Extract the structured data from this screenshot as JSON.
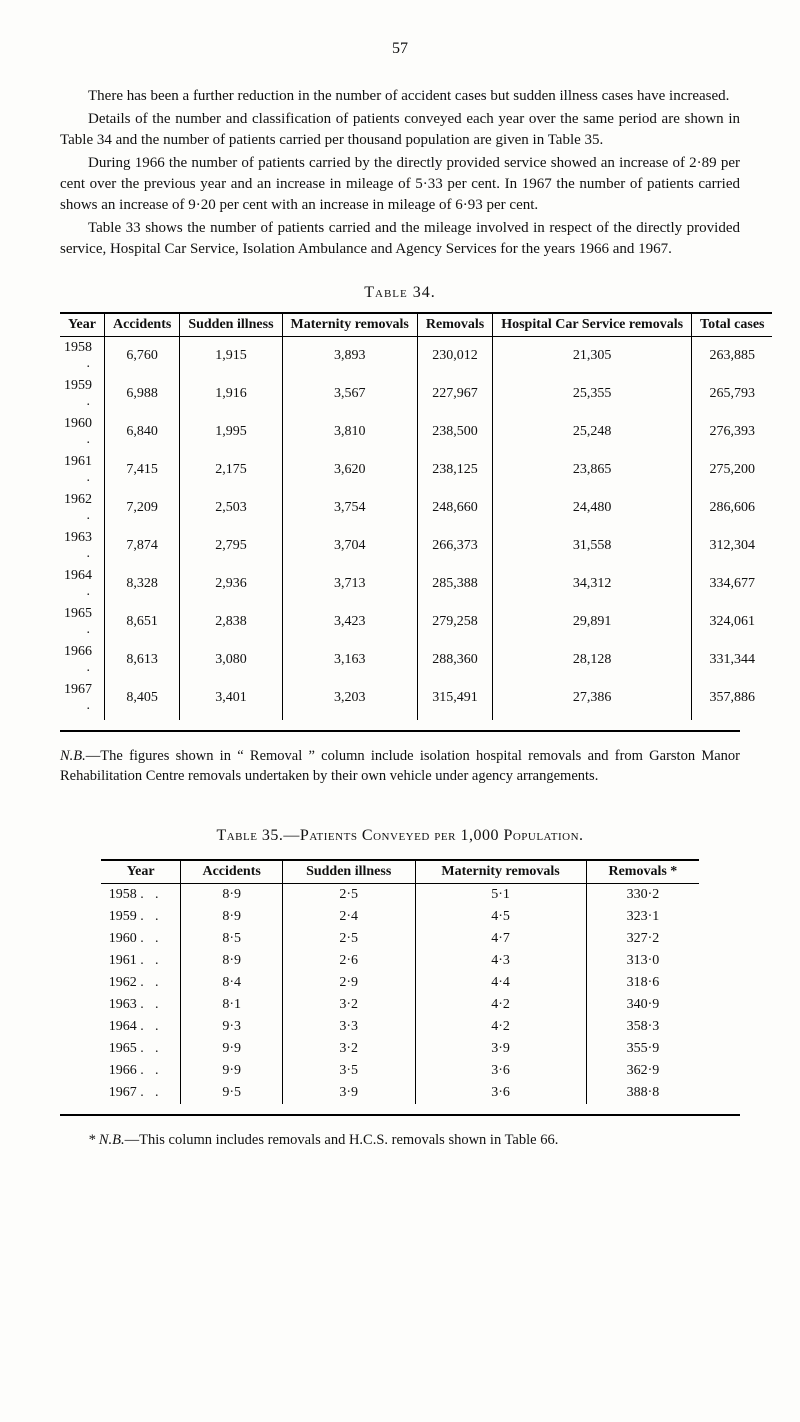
{
  "page_number": "57",
  "paragraphs": {
    "p1": "There has been a further reduction in the number of accident cases but sudden illness cases have increased.",
    "p2": "Details of the number and classification of patients conveyed each year over the same period are shown in Table 34 and the number of patients carried per thousand population are given in Table 35.",
    "p3": "During 1966 the number of patients carried by the directly provided service showed an increase of 2·89 per cent over the previous year and an increase in mileage of 5·33 per cent. In 1967 the number of patients carried shows an increase of 9·20 per cent with an increase in mileage of 6·93 per cent.",
    "p4": "Table 33 shows the number of patients carried and the mileage involved in respect of the directly provided service, Hospital Car Service, Isolation Ambulance and Agency Services for the years 1966 and 1967."
  },
  "table34": {
    "caption": "Table 34.",
    "columns": [
      "Year",
      "Accidents",
      "Sudden illness",
      "Maternity removals",
      "Removals",
      "Hospital Car Service removals",
      "Total cases"
    ],
    "rows": [
      [
        "1958",
        "6,760",
        "1,915",
        "3,893",
        "230,012",
        "21,305",
        "263,885"
      ],
      [
        "1959",
        "6,988",
        "1,916",
        "3,567",
        "227,967",
        "25,355",
        "265,793"
      ],
      [
        "1960",
        "6,840",
        "1,995",
        "3,810",
        "238,500",
        "25,248",
        "276,393"
      ],
      [
        "1961",
        "7,415",
        "2,175",
        "3,620",
        "238,125",
        "23,865",
        "275,200"
      ],
      [
        "1962",
        "7,209",
        "2,503",
        "3,754",
        "248,660",
        "24,480",
        "286,606"
      ],
      [
        "1963",
        "7,874",
        "2,795",
        "3,704",
        "266,373",
        "31,558",
        "312,304"
      ],
      [
        "1964",
        "8,328",
        "2,936",
        "3,713",
        "285,388",
        "34,312",
        "334,677"
      ],
      [
        "1965",
        "8,651",
        "2,838",
        "3,423",
        "279,258",
        "29,891",
        "324,061"
      ],
      [
        "1966",
        "8,613",
        "3,080",
        "3,163",
        "288,360",
        "28,128",
        "331,344"
      ],
      [
        "1967",
        "8,405",
        "3,401",
        "3,203",
        "315,491",
        "27,386",
        "357,886"
      ]
    ],
    "note_prefix": "N.B.",
    "note_text": "—The figures shown in “ Removal ” column include isolation hospital removals and from Garston Manor Rehabilitation Centre removals undertaken by their own vehicle under agency arrangements."
  },
  "table35": {
    "caption": "Table 35.—Patients Conveyed per 1,000 Population.",
    "columns": [
      "Year",
      "Accidents",
      "Sudden illness",
      "Maternity removals",
      "Removals *"
    ],
    "rows": [
      [
        "1958 .",
        "8·9",
        "2·5",
        "5·1",
        "330·2"
      ],
      [
        "1959 .",
        "8·9",
        "2·4",
        "4·5",
        "323·1"
      ],
      [
        "1960 .",
        "8·5",
        "2·5",
        "4·7",
        "327·2"
      ],
      [
        "1961 .",
        "8·9",
        "2·6",
        "4·3",
        "313·0"
      ],
      [
        "1962 .",
        "8·4",
        "2·9",
        "4·4",
        "318·6"
      ],
      [
        "1963 .",
        "8·1",
        "3·2",
        "4·2",
        "340·9"
      ],
      [
        "1964 .",
        "9·3",
        "3·3",
        "4·2",
        "358·3"
      ],
      [
        "1965 .",
        "9·9",
        "3·2",
        "3·9",
        "355·9"
      ],
      [
        "1966 .",
        "9·9",
        "3·5",
        "3·6",
        "362·9"
      ],
      [
        "1967 .",
        "9·5",
        "3·9",
        "3·6",
        "388·8"
      ]
    ],
    "footnote_prefix": "* N.B.",
    "footnote_text": "—This column includes removals and H.C.S. removals shown in Table 66."
  }
}
